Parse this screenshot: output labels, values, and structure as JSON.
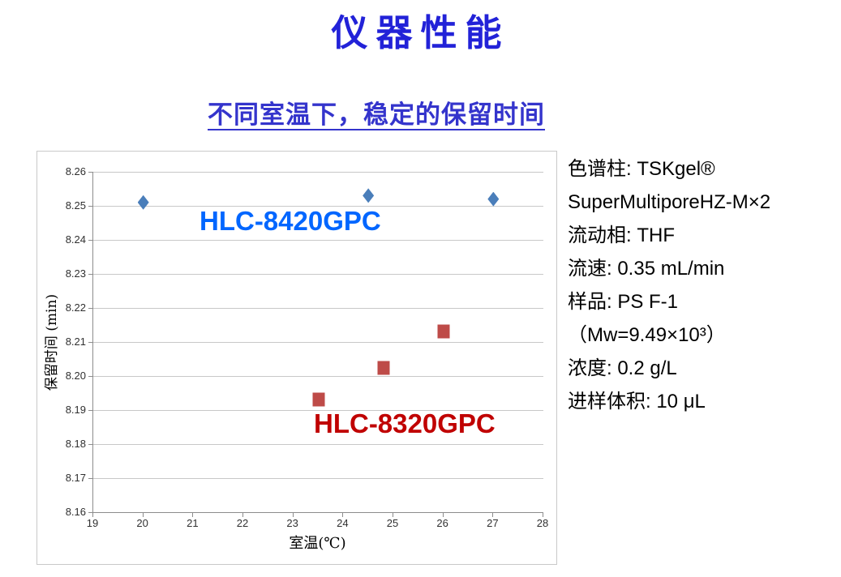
{
  "page": {
    "title": "仪器性能",
    "subtitle": "不同室温下，稳定的保留时间"
  },
  "colors": {
    "title": "#2222d8",
    "subtitle": "#3434cc",
    "axis_line": "#8c8c8c",
    "gridline": "#c8c8c8",
    "chart_border": "#c9c9c9"
  },
  "chart_data": {
    "type": "scatter",
    "title": "",
    "xlabel": "室温(℃)",
    "ylabel": "保留时间 (min)",
    "xlim": [
      19,
      28
    ],
    "ylim": [
      8.16,
      8.26
    ],
    "x_ticks": [
      "19",
      "20",
      "21",
      "22",
      "23",
      "24",
      "25",
      "26",
      "27",
      "28"
    ],
    "y_ticks": [
      "8.16",
      "8.17",
      "8.18",
      "8.19",
      "8.20",
      "8.21",
      "8.22",
      "8.23",
      "8.24",
      "8.25",
      "8.26"
    ],
    "grid": true,
    "legend_position": "none (inline text labels beside each series)",
    "series": [
      {
        "name": "HLC-8420GPC",
        "marker": "diamond",
        "marker_color": "#4a7eba",
        "label_color": "#0066ff",
        "points": [
          [
            20,
            8.251
          ],
          [
            24.5,
            8.253
          ],
          [
            27,
            8.252
          ]
        ]
      },
      {
        "name": "HLC-8320GPC",
        "marker": "square",
        "marker_color": "#be4b48",
        "label_color": "#c00000",
        "points": [
          [
            23.5,
            8.193
          ],
          [
            24.8,
            8.2025
          ],
          [
            26,
            8.213
          ]
        ]
      }
    ]
  },
  "conditions": {
    "lines": [
      "色谱柱: TSKgel®",
      "SuperMultiporeHZ-M×2",
      "流动相: THF",
      "流速: 0.35 mL/min",
      "样品: PS F-1",
      "（Mw=9.49×10³）",
      "浓度: 0.2 g/L",
      "进样体积: 10 μL"
    ]
  }
}
